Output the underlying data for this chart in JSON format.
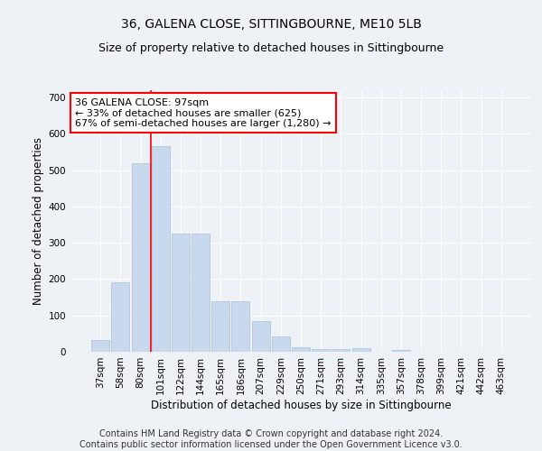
{
  "title": "36, GALENA CLOSE, SITTINGBOURNE, ME10 5LB",
  "subtitle": "Size of property relative to detached houses in Sittingbourne",
  "xlabel": "Distribution of detached houses by size in Sittingbourne",
  "ylabel": "Number of detached properties",
  "categories": [
    "37sqm",
    "58sqm",
    "80sqm",
    "101sqm",
    "122sqm",
    "144sqm",
    "165sqm",
    "186sqm",
    "207sqm",
    "229sqm",
    "250sqm",
    "271sqm",
    "293sqm",
    "314sqm",
    "335sqm",
    "357sqm",
    "378sqm",
    "399sqm",
    "421sqm",
    "442sqm",
    "463sqm"
  ],
  "values": [
    33,
    190,
    520,
    565,
    325,
    325,
    140,
    140,
    85,
    43,
    13,
    7,
    7,
    10,
    0,
    5,
    0,
    0,
    0,
    0,
    0
  ],
  "bar_color": "#c9d9ed",
  "bar_edge_color": "#a8bfd6",
  "vline_x_index": 3,
  "vline_color": "red",
  "annotation_text": "36 GALENA CLOSE: 97sqm\n← 33% of detached houses are smaller (625)\n67% of semi-detached houses are larger (1,280) →",
  "annotation_box_color": "white",
  "annotation_border_color": "red",
  "ylim": [
    0,
    720
  ],
  "yticks": [
    0,
    100,
    200,
    300,
    400,
    500,
    600,
    700
  ],
  "footnote": "Contains HM Land Registry data © Crown copyright and database right 2024.\nContains public sector information licensed under the Open Government Licence v3.0.",
  "background_color": "#eef2f7",
  "plot_background": "#eef2f7",
  "title_fontsize": 10,
  "subtitle_fontsize": 9,
  "axis_label_fontsize": 8.5,
  "tick_fontsize": 7.5,
  "annotation_fontsize": 8,
  "footnote_fontsize": 7
}
